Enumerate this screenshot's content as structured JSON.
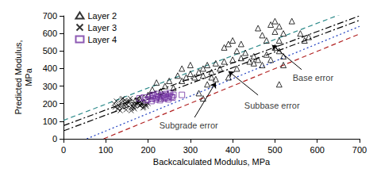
{
  "chart_data": {
    "type": "scatter",
    "x_label": "Backcalculated Modulus, MPa",
    "y_label": "Predicted Modulus,\nMPa",
    "xlim": [
      0,
      700
    ],
    "xticks": [
      0,
      100,
      200,
      300,
      400,
      500,
      600,
      700
    ],
    "ylim": [
      0,
      700
    ],
    "yticks": [
      0,
      100,
      200,
      300,
      400,
      500,
      600,
      700
    ],
    "grid": false,
    "legend": "top-left",
    "series": [
      {
        "name": "Layer 2",
        "color": "#000000",
        "marker": "triangle",
        "x": [
          500,
          490,
          510,
          540,
          520,
          460,
          500,
          470,
          480,
          510,
          420,
          400,
          390,
          380,
          410,
          430,
          450,
          460,
          480,
          500,
          510,
          520,
          560,
          570,
          580,
          510,
          440,
          420,
          400,
          380,
          360,
          340,
          330,
          350,
          370,
          320,
          300,
          290,
          280,
          310,
          330,
          270,
          250,
          240,
          220,
          210,
          200,
          230,
          260,
          280,
          300,
          330,
          320,
          350,
          360,
          340,
          230,
          190,
          180,
          170,
          450,
          470,
          490,
          520,
          410,
          390
        ],
        "y": [
          670,
          650,
          640,
          670,
          600,
          630,
          610,
          590,
          560,
          560,
          540,
          560,
          540,
          520,
          500,
          490,
          470,
          450,
          480,
          520,
          500,
          470,
          600,
          560,
          580,
          310,
          440,
          460,
          450,
          440,
          430,
          420,
          400,
          380,
          400,
          380,
          370,
          350,
          330,
          350,
          360,
          360,
          330,
          300,
          320,
          280,
          250,
          270,
          290,
          400,
          420,
          230,
          260,
          350,
          340,
          310,
          230,
          210,
          230,
          220,
          430,
          420,
          450,
          420,
          400,
          350
        ]
      },
      {
        "name": "Layer 3",
        "color": "#000000",
        "marker": "x",
        "x": [
          120,
          125,
          130,
          135,
          140,
          145,
          150,
          155,
          160,
          165,
          170,
          175,
          180,
          185,
          190,
          195,
          200,
          128,
          138,
          148,
          158,
          168,
          178,
          188,
          132,
          142,
          152,
          162,
          172,
          182,
          122,
          134,
          146,
          156,
          166,
          176,
          186,
          196,
          140,
          160
        ],
        "y": [
          200,
          215,
          190,
          205,
          180,
          220,
          195,
          210,
          175,
          200,
          185,
          215,
          190,
          205,
          180,
          195,
          200,
          170,
          225,
          165,
          230,
          170,
          220,
          175,
          185,
          195,
          210,
          185,
          200,
          190,
          180,
          160,
          200,
          215,
          180,
          205,
          195,
          185,
          230,
          160
        ]
      },
      {
        "name": "Layer 4",
        "color": "#7030a0",
        "marker": "square",
        "x": [
          180,
          190,
          200,
          205,
          210,
          215,
          220,
          225,
          230,
          235,
          240,
          245,
          250,
          255,
          260,
          195,
          208,
          218,
          228,
          238,
          248,
          258,
          212,
          222,
          232,
          242,
          252,
          280
        ],
        "y": [
          230,
          235,
          225,
          240,
          230,
          245,
          235,
          240,
          230,
          250,
          240,
          235,
          245,
          240,
          250,
          220,
          215,
          225,
          220,
          230,
          225,
          235,
          250,
          255,
          245,
          255,
          260,
          250
        ]
      }
    ],
    "lines": [
      {
        "color": "#2e8b8b",
        "line_style": "dashed",
        "x": [
          0,
          700
        ],
        "y": [
          105,
          750
        ]
      },
      {
        "color": "#000000",
        "line_style": "dashdot",
        "x": [
          0,
          700
        ],
        "y": [
          75,
          700
        ]
      },
      {
        "color": "#000000",
        "line_style": "dashdot",
        "x": [
          0,
          700
        ],
        "y": [
          45,
          675
        ]
      },
      {
        "color": "#1f3fbf",
        "line_style": "dotted",
        "x": [
          55,
          700
        ],
        "y": [
          0,
          640
        ]
      },
      {
        "color": "#b22222",
        "line_style": "dashed",
        "x": [
          95,
          700
        ],
        "y": [
          0,
          597
        ]
      }
    ],
    "annotations": [
      {
        "text": "Base error",
        "x": 590,
        "y": 350,
        "arrow_from": [
          563,
          394
        ],
        "arrow_to": [
          493,
          534
        ]
      },
      {
        "text": "Subbase error",
        "x": 493,
        "y": 190,
        "arrow_from": [
          460,
          249
        ],
        "arrow_to": [
          390,
          385
        ]
      },
      {
        "text": "Subgrade error",
        "x": 296,
        "y": 77,
        "arrow_from": [
          310,
          122
        ],
        "arrow_to": [
          360,
          321
        ]
      }
    ]
  }
}
